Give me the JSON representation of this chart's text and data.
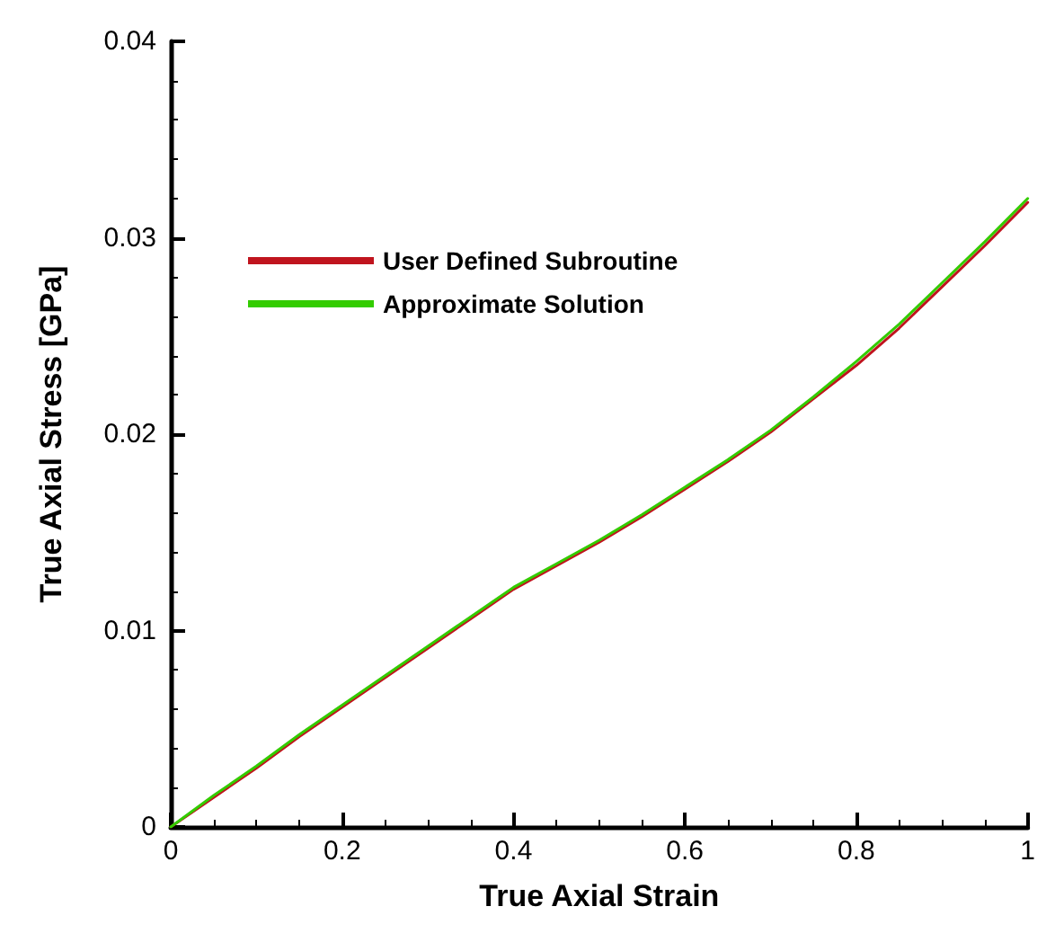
{
  "chart_data": {
    "type": "line",
    "xlabel": "True Axial Strain",
    "ylabel": "True Axial Stress [GPa]",
    "x": [
      0,
      0.05,
      0.1,
      0.15,
      0.2,
      0.25,
      0.3,
      0.35,
      0.4,
      0.45,
      0.5,
      0.55,
      0.6,
      0.65,
      0.7,
      0.75,
      0.8,
      0.85,
      0.9,
      0.95,
      1
    ],
    "series": [
      {
        "name": "User Defined Subroutine",
        "color": "#c0141e",
        "values": [
          0,
          0.0015,
          0.003,
          0.0046,
          0.0061,
          0.0076,
          0.0091,
          0.0106,
          0.0121,
          0.0133,
          0.0145,
          0.0158,
          0.0172,
          0.0186,
          0.0201,
          0.0218,
          0.0235,
          0.0254,
          0.0275,
          0.0296,
          0.0318
        ]
      },
      {
        "name": "Approximate Solution",
        "color": "#33cc00",
        "values": [
          0,
          0.0016,
          0.0031,
          0.0047,
          0.0062,
          0.0077,
          0.0092,
          0.0107,
          0.0122,
          0.0134,
          0.0146,
          0.0159,
          0.0173,
          0.0187,
          0.0202,
          0.0219,
          0.0237,
          0.0256,
          0.0277,
          0.0298,
          0.032
        ]
      }
    ],
    "xlim": [
      0,
      1
    ],
    "xticks": [
      0,
      0.2,
      0.4,
      0.6,
      0.8,
      1
    ],
    "ylim": [
      0,
      0.04
    ],
    "yticks": [
      0,
      0.01,
      0.02,
      0.03,
      0.04
    ],
    "grid": false,
    "legend": "top left",
    "marker": "none",
    "line_style": "solid"
  }
}
